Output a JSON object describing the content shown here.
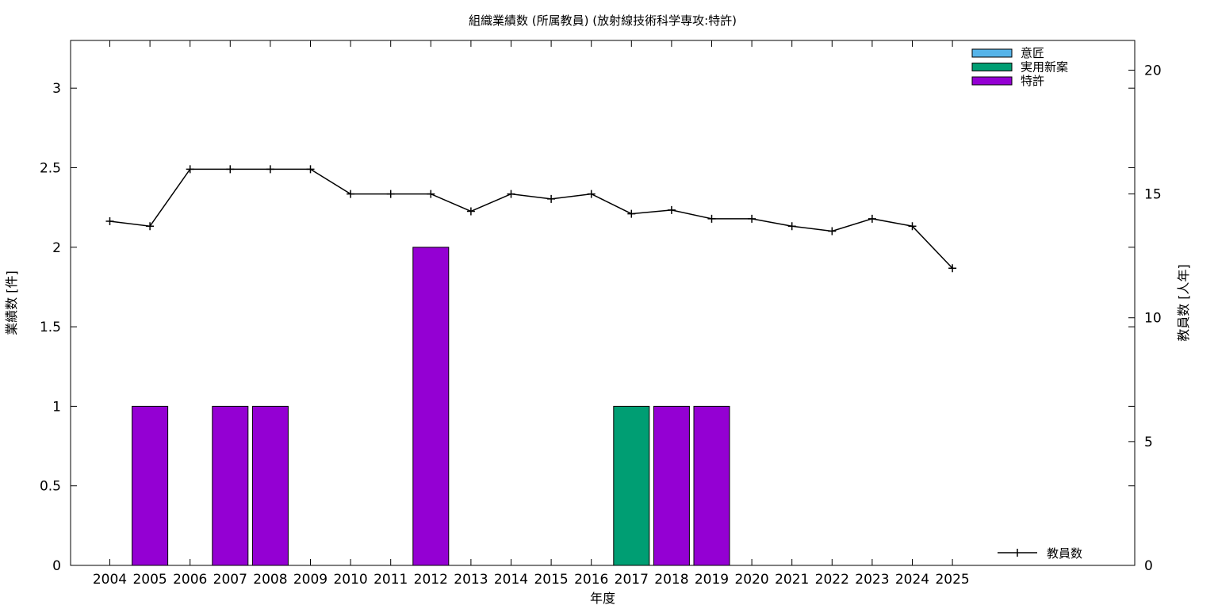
{
  "chart_data": {
    "type": "bar",
    "title": "組織業績数 (所属教員) (放射線技術科学専攻:特許)",
    "xlabel": "年度",
    "ylabel": "業績数 [件]",
    "y2label": "教員数 [人年]",
    "categories": [
      "2004",
      "2005",
      "2006",
      "2007",
      "2008",
      "2009",
      "2010",
      "2011",
      "2012",
      "2013",
      "2014",
      "2015",
      "2016",
      "2017",
      "2018",
      "2019",
      "2020",
      "2021",
      "2022",
      "2023",
      "2024",
      "2025"
    ],
    "ylim": [
      0,
      3.3
    ],
    "y2lim": [
      0,
      21.2
    ],
    "yticks": [
      "0",
      "0.5",
      "1",
      "1.5",
      "2",
      "2.5",
      "3"
    ],
    "y2ticks": [
      "0",
      "5",
      "10",
      "15",
      "20"
    ],
    "series": [
      {
        "name": "意匠",
        "kind": "bar",
        "color": "#56b4e9",
        "values": [
          0,
          0,
          0,
          0,
          0,
          0,
          0,
          0,
          0,
          0,
          0,
          0,
          0,
          0,
          0,
          0,
          0,
          0,
          0,
          0,
          0,
          0
        ]
      },
      {
        "name": "実用新案",
        "kind": "bar",
        "color": "#009e73",
        "values": [
          0,
          0,
          0,
          0,
          0,
          0,
          0,
          0,
          0,
          0,
          0,
          0,
          0,
          1,
          0,
          0,
          0,
          0,
          0,
          0,
          0,
          0
        ]
      },
      {
        "name": "特許",
        "kind": "bar",
        "color": "#9400d3",
        "values": [
          0,
          1,
          0,
          1,
          1,
          0,
          0,
          0,
          2,
          0,
          0,
          0,
          0,
          0,
          1,
          1,
          0,
          0,
          0,
          0,
          0,
          0
        ]
      },
      {
        "name": "教員数",
        "kind": "line",
        "axis": "y2",
        "color": "#000000",
        "values": [
          13.9,
          13.7,
          16.0,
          16.0,
          16.0,
          16.0,
          15.0,
          15.0,
          15.0,
          14.3,
          15.0,
          14.8,
          15.0,
          14.2,
          14.35,
          14.0,
          14.0,
          13.7,
          13.5,
          14.0,
          13.7,
          12.0
        ]
      }
    ],
    "legend_placement": "top-right",
    "grid": false
  }
}
